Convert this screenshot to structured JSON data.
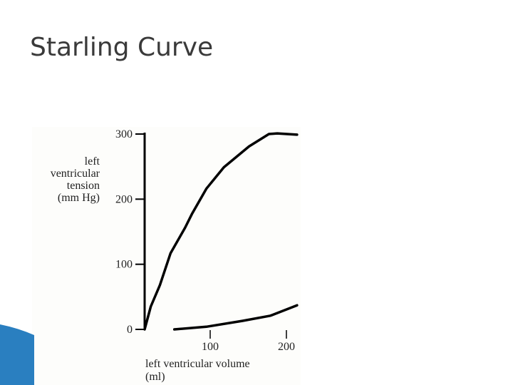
{
  "chart_data": {
    "type": "line",
    "title": "Starling Curve",
    "y_label": [
      "left",
      "ventricular",
      "tension",
      "(mm Hg)"
    ],
    "x_label": [
      "left ventricular volume",
      "(ml)"
    ],
    "series": [
      {
        "color": "#000000",
        "x": [
          14,
          22,
          34,
          48,
          67,
          76,
          95,
          118,
          151,
          177,
          188,
          214
        ],
        "values": [
          0,
          35,
          68,
          117,
          156,
          177,
          216,
          249,
          281,
          300,
          301,
          299
        ]
      },
      {
        "color": "#000000",
        "x": [
          53,
          95,
          142,
          179,
          214
        ],
        "values": [
          0,
          4,
          13,
          21,
          37
        ]
      }
    ],
    "xlim": [
      14,
      215
    ],
    "ylim": [
      0,
      300
    ],
    "xticks": [
      100,
      200
    ],
    "yticks": [
      0,
      100,
      200,
      300
    ]
  }
}
